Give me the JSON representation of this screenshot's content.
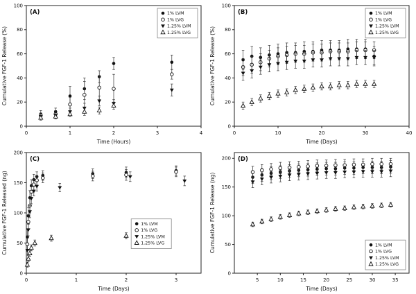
{
  "figure": {
    "background": "#ffffff",
    "panel_labels": [
      "(A)",
      "(B)",
      "(C)",
      "(D)"
    ]
  },
  "colors": {
    "marker": "#111111",
    "error_bar": "#333333",
    "frame": "#222222",
    "legend_border": "#888888",
    "background": "#ffffff"
  },
  "legend_labels": [
    "1% LVM",
    "1% LVG",
    "1.25% LVM",
    "1.25% LVG"
  ],
  "chart_data": [
    {
      "panel": "A",
      "type": "scatter",
      "xlabel": "Time (Hours)",
      "ylabel": "Cumulative FGF-1 Release (%)",
      "xlim": [
        0,
        4
      ],
      "ylim": [
        0,
        100
      ],
      "xticks": [
        0,
        1,
        2,
        3,
        4
      ],
      "yticks": [
        0,
        20,
        40,
        60,
        80,
        100
      ],
      "legend_pos": "top-right",
      "series": [
        {
          "name": "1% LVM",
          "marker": "circle-filled",
          "x": [
            0.33,
            0.67,
            1.0,
            1.33,
            1.67,
            2.0,
            3.33
          ],
          "y": [
            10,
            12,
            25,
            31,
            41,
            52,
            53
          ],
          "err": [
            3,
            3,
            8,
            9,
            5,
            5,
            6
          ]
        },
        {
          "name": "1% LVG",
          "marker": "circle-open",
          "x": [
            0.33,
            0.67,
            1.0,
            1.33,
            1.67,
            2.0,
            3.33
          ],
          "y": [
            9,
            10,
            18,
            26,
            32,
            31,
            43
          ],
          "err": [
            2,
            3,
            6,
            11,
            10,
            12,
            4
          ]
        },
        {
          "name": "1.25% LVM",
          "marker": "tri-down-filled",
          "x": [
            0.33,
            0.67,
            1.0,
            1.33,
            1.67,
            2.0,
            3.33
          ],
          "y": [
            8,
            9,
            12,
            15,
            21,
            19,
            30
          ],
          "err": [
            2,
            2,
            3,
            4,
            4,
            3,
            5
          ]
        },
        {
          "name": "1.25% LVG",
          "marker": "tri-up-open",
          "x": [
            0.33,
            0.67,
            1.0,
            1.33,
            1.67,
            2.0
          ],
          "y": [
            7,
            8,
            10,
            12,
            13,
            17
          ],
          "err": [
            2,
            2,
            2,
            3,
            3,
            3
          ]
        }
      ]
    },
    {
      "panel": "B",
      "type": "scatter",
      "xlabel": "Time (Days)",
      "ylabel": "Cumulative FGF-1 Release (%)",
      "xlim": [
        0,
        40
      ],
      "ylim": [
        0,
        100
      ],
      "xticks": [
        0,
        10,
        20,
        30,
        40
      ],
      "yticks": [
        0,
        20,
        40,
        60,
        80,
        100
      ],
      "legend_pos": "top-right",
      "series": [
        {
          "name": "1% LVM",
          "marker": "circle-filled",
          "x": [
            2,
            4,
            6,
            8,
            10,
            12,
            14,
            16,
            18,
            20,
            22,
            24,
            26,
            28,
            30,
            32
          ],
          "y": [
            55,
            58,
            57,
            59,
            60,
            61,
            61,
            62,
            62,
            63,
            63,
            63,
            64,
            64,
            64,
            58
          ],
          "err": [
            8,
            8,
            8,
            8,
            8,
            8,
            8,
            8,
            8,
            8,
            8,
            8,
            8,
            8,
            8,
            8
          ]
        },
        {
          "name": "1% LVG",
          "marker": "circle-open",
          "x": [
            2,
            4,
            6,
            8,
            10,
            12,
            14,
            16,
            18,
            20,
            22,
            24,
            26,
            28,
            30,
            32
          ],
          "y": [
            49,
            51,
            53,
            56,
            58,
            59,
            60,
            60,
            61,
            61,
            62,
            62,
            62,
            63,
            63,
            63
          ],
          "err": [
            7,
            7,
            7,
            7,
            7,
            7,
            7,
            7,
            7,
            7,
            7,
            7,
            7,
            7,
            7,
            7
          ]
        },
        {
          "name": "1.25% LVM",
          "marker": "tri-down-filled",
          "x": [
            2,
            4,
            6,
            8,
            10,
            12,
            14,
            16,
            18,
            20,
            22,
            24,
            26,
            28,
            30,
            32
          ],
          "y": [
            44,
            46,
            49,
            51,
            52,
            53,
            54,
            54,
            55,
            55,
            56,
            56,
            56,
            57,
            57,
            57
          ],
          "err": [
            6,
            6,
            6,
            6,
            6,
            6,
            6,
            6,
            6,
            6,
            6,
            6,
            6,
            6,
            6,
            6
          ]
        },
        {
          "name": "1.25% LVG",
          "marker": "tri-up-open",
          "x": [
            2,
            4,
            6,
            8,
            10,
            12,
            14,
            16,
            18,
            20,
            22,
            24,
            26,
            28,
            30,
            32
          ],
          "y": [
            17,
            20,
            23,
            25,
            27,
            28,
            30,
            31,
            32,
            33,
            33,
            34,
            34,
            35,
            35,
            35
          ],
          "err": [
            3,
            3,
            3,
            3,
            3,
            3,
            3,
            3,
            3,
            3,
            3,
            3,
            3,
            3,
            3,
            3
          ]
        }
      ]
    },
    {
      "panel": "C",
      "type": "scatter",
      "xlabel": "Time (Days)",
      "ylabel": "Cumulative FGF-1 Released (ng)",
      "xlim": [
        0,
        3.5
      ],
      "ylim": [
        0,
        200
      ],
      "xticks": [
        0,
        1,
        2,
        3
      ],
      "yticks": [
        0,
        50,
        100,
        150,
        200
      ],
      "legend_pos": "center-right",
      "series": [
        {
          "name": "1% LVM",
          "marker": "circle-filled",
          "x": [
            0.02,
            0.04,
            0.07,
            0.1,
            0.15,
            0.21,
            0.33,
            1.33,
            2.0,
            3.0
          ],
          "y": [
            60,
            95,
            125,
            145,
            155,
            160,
            162,
            165,
            167,
            170
          ],
          "err": [
            12,
            14,
            12,
            10,
            9,
            8,
            8,
            8,
            9,
            8
          ]
        },
        {
          "name": "1% LVG",
          "marker": "circle-open",
          "x": [
            0.02,
            0.04,
            0.07,
            0.1,
            0.15,
            0.21,
            0.33,
            1.33,
            2.0,
            3.0
          ],
          "y": [
            48,
            85,
            112,
            135,
            147,
            154,
            158,
            161,
            163,
            168
          ],
          "err": [
            10,
            12,
            12,
            10,
            9,
            8,
            8,
            8,
            9,
            8
          ]
        },
        {
          "name": "1.25% LVM",
          "marker": "tri-down-filled",
          "x": [
            0.02,
            0.04,
            0.07,
            0.1,
            0.15,
            0.21,
            0.67,
            2.08,
            3.17
          ],
          "y": [
            38,
            72,
            102,
            124,
            136,
            144,
            142,
            160,
            153
          ],
          "err": [
            8,
            10,
            10,
            9,
            8,
            8,
            7,
            8,
            8
          ]
        },
        {
          "name": "1.25% LVG",
          "marker": "tri-up-open",
          "x": [
            0.02,
            0.04,
            0.07,
            0.1,
            0.17,
            0.5,
            2.0
          ],
          "y": [
            14,
            24,
            33,
            42,
            50,
            58,
            62
          ],
          "err": [
            4,
            5,
            5,
            5,
            5,
            5,
            5
          ]
        }
      ]
    },
    {
      "panel": "D",
      "type": "scatter",
      "xlabel": "Time (Days)",
      "ylabel": "Cumulative FGF-1 Release (ng)",
      "xlim": [
        0,
        38
      ],
      "ylim": [
        0,
        210
      ],
      "xticks": [
        5,
        10,
        15,
        20,
        25,
        30,
        35
      ],
      "yticks": [
        0,
        50,
        100,
        150,
        200
      ],
      "legend_pos": "bottom-right",
      "series": [
        {
          "name": "1% LVM",
          "marker": "circle-filled",
          "x": [
            4,
            6,
            8,
            10,
            12,
            14,
            16,
            18,
            20,
            22,
            24,
            26,
            28,
            30,
            32,
            34
          ],
          "y": [
            167,
            171,
            174,
            176,
            178,
            179,
            180,
            181,
            182,
            182,
            183,
            183,
            184,
            184,
            184,
            185
          ],
          "err": [
            11,
            11,
            11,
            11,
            11,
            11,
            11,
            11,
            11,
            11,
            11,
            11,
            11,
            11,
            11,
            11
          ]
        },
        {
          "name": "1% LVG",
          "marker": "circle-open",
          "x": [
            4,
            6,
            8,
            10,
            12,
            14,
            16,
            18,
            20,
            22,
            24,
            26,
            28,
            30,
            32,
            34
          ],
          "y": [
            176,
            179,
            181,
            183,
            184,
            185,
            186,
            187,
            187,
            188,
            188,
            189,
            189,
            190,
            190,
            190
          ],
          "err": [
            10,
            10,
            10,
            10,
            10,
            10,
            10,
            10,
            10,
            10,
            10,
            10,
            10,
            10,
            10,
            10
          ]
        },
        {
          "name": "1.25% LVM",
          "marker": "tri-down-filled",
          "x": [
            4,
            6,
            8,
            10,
            12,
            14,
            16,
            18,
            20,
            22,
            24,
            26,
            28,
            30,
            32,
            34
          ],
          "y": [
            159,
            164,
            167,
            169,
            171,
            172,
            173,
            174,
            175,
            175,
            176,
            176,
            177,
            177,
            177,
            178
          ],
          "err": [
            10,
            10,
            10,
            10,
            10,
            10,
            10,
            10,
            10,
            10,
            10,
            10,
            10,
            10,
            10,
            10
          ]
        },
        {
          "name": "1.25% LVG",
          "marker": "tri-up-open",
          "x": [
            4,
            6,
            8,
            10,
            12,
            14,
            16,
            18,
            20,
            22,
            24,
            26,
            28,
            30,
            32,
            34
          ],
          "y": [
            85,
            90,
            94,
            98,
            101,
            104,
            106,
            108,
            110,
            112,
            113,
            115,
            116,
            117,
            118,
            119
          ],
          "err": [
            4,
            4,
            4,
            4,
            4,
            4,
            4,
            4,
            4,
            4,
            4,
            4,
            4,
            4,
            4,
            4
          ]
        }
      ]
    }
  ]
}
